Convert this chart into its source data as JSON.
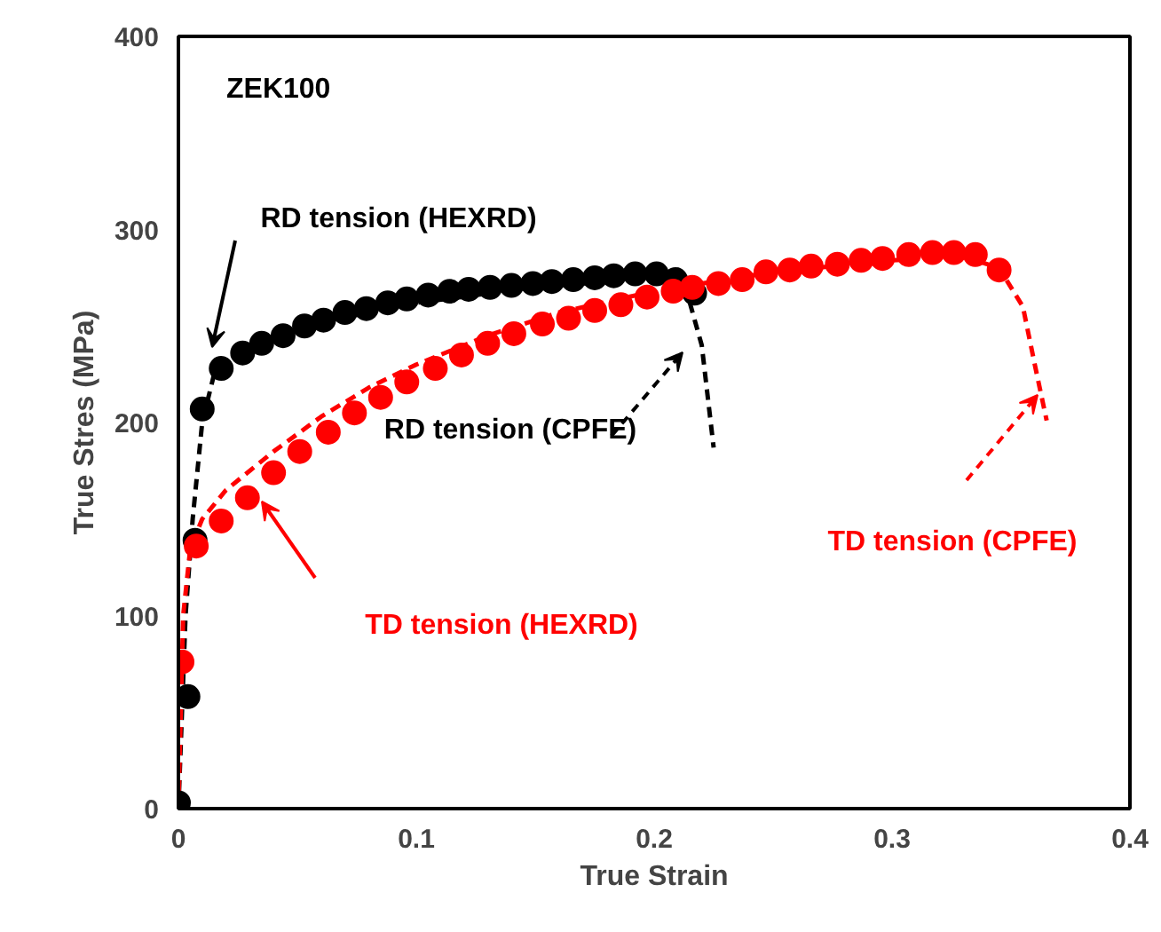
{
  "chart_data": {
    "type": "scatter",
    "xlabel": "True Strain",
    "ylabel": "True Stres (MPa)",
    "xlim": [
      0,
      0.4
    ],
    "ylim": [
      0,
      400
    ],
    "xticks": [
      0,
      0.1,
      0.2,
      0.3,
      0.4
    ],
    "yticks": [
      0,
      100,
      200,
      300,
      400
    ],
    "grid": false,
    "series": [
      {
        "type": "line",
        "line_style": "dashed",
        "color": "#000000",
        "x": [
          0,
          0.003,
          0.006,
          0.01,
          0.015,
          0.03,
          0.06,
          0.1,
          0.15,
          0.2,
          0.21,
          0.215,
          0.22,
          0.225
        ],
        "values": [
          0,
          100,
          150,
          200,
          225,
          240,
          252,
          262,
          270,
          275,
          272,
          262,
          240,
          187
        ]
      },
      {
        "type": "line",
        "line_style": "dashed",
        "color": "#ff0000",
        "x": [
          0,
          0.002,
          0.005,
          0.01,
          0.02,
          0.04,
          0.06,
          0.08,
          0.1,
          0.13,
          0.16,
          0.2,
          0.25,
          0.3,
          0.33,
          0.345,
          0.355,
          0.36,
          0.365
        ],
        "values": [
          0,
          100,
          135,
          150,
          165,
          185,
          203,
          218,
          230,
          245,
          257,
          268,
          278,
          284,
          286,
          280,
          260,
          230,
          201
        ]
      },
      {
        "marker": "circle",
        "color": "#000000",
        "x": [
          0,
          0.004,
          0.007,
          0.01,
          0.018,
          0.027,
          0.035,
          0.044,
          0.053,
          0.061,
          0.07,
          0.079,
          0.088,
          0.096,
          0.105,
          0.114,
          0.122,
          0.131,
          0.14,
          0.149,
          0.157,
          0.166,
          0.175,
          0.183,
          0.192,
          0.201,
          0.209,
          0.217
        ],
        "values": [
          3,
          58,
          139,
          207,
          228,
          236,
          241,
          245,
          250,
          253,
          257,
          259,
          262,
          264,
          266,
          268,
          269,
          270,
          271,
          272,
          273,
          274,
          275,
          276,
          277,
          277,
          274,
          267
        ]
      },
      {
        "marker": "circle",
        "color": "#ff0000",
        "x": [
          0.0015,
          0.0075,
          0.018,
          0.029,
          0.04,
          0.051,
          0.063,
          0.074,
          0.085,
          0.096,
          0.108,
          0.119,
          0.13,
          0.141,
          0.153,
          0.164,
          0.175,
          0.186,
          0.197,
          0.208,
          0.216,
          0.227,
          0.237,
          0.247,
          0.257,
          0.266,
          0.277,
          0.287,
          0.296,
          0.307,
          0.317,
          0.326,
          0.335,
          0.345
        ],
        "values": [
          76,
          136,
          149,
          161,
          174,
          185,
          195,
          205,
          213,
          221,
          228,
          235,
          241,
          246,
          251,
          254,
          258,
          261,
          265,
          268,
          270,
          272,
          274,
          278,
          279,
          281,
          282,
          284,
          285,
          287,
          288,
          288,
          287,
          279
        ]
      }
    ],
    "annotations": [
      "ZEK100",
      "RD tension (HEXRD)",
      "RD tension (CPFE)",
      "TD tension (HEXRD)",
      "TD tension (CPFE)"
    ]
  }
}
